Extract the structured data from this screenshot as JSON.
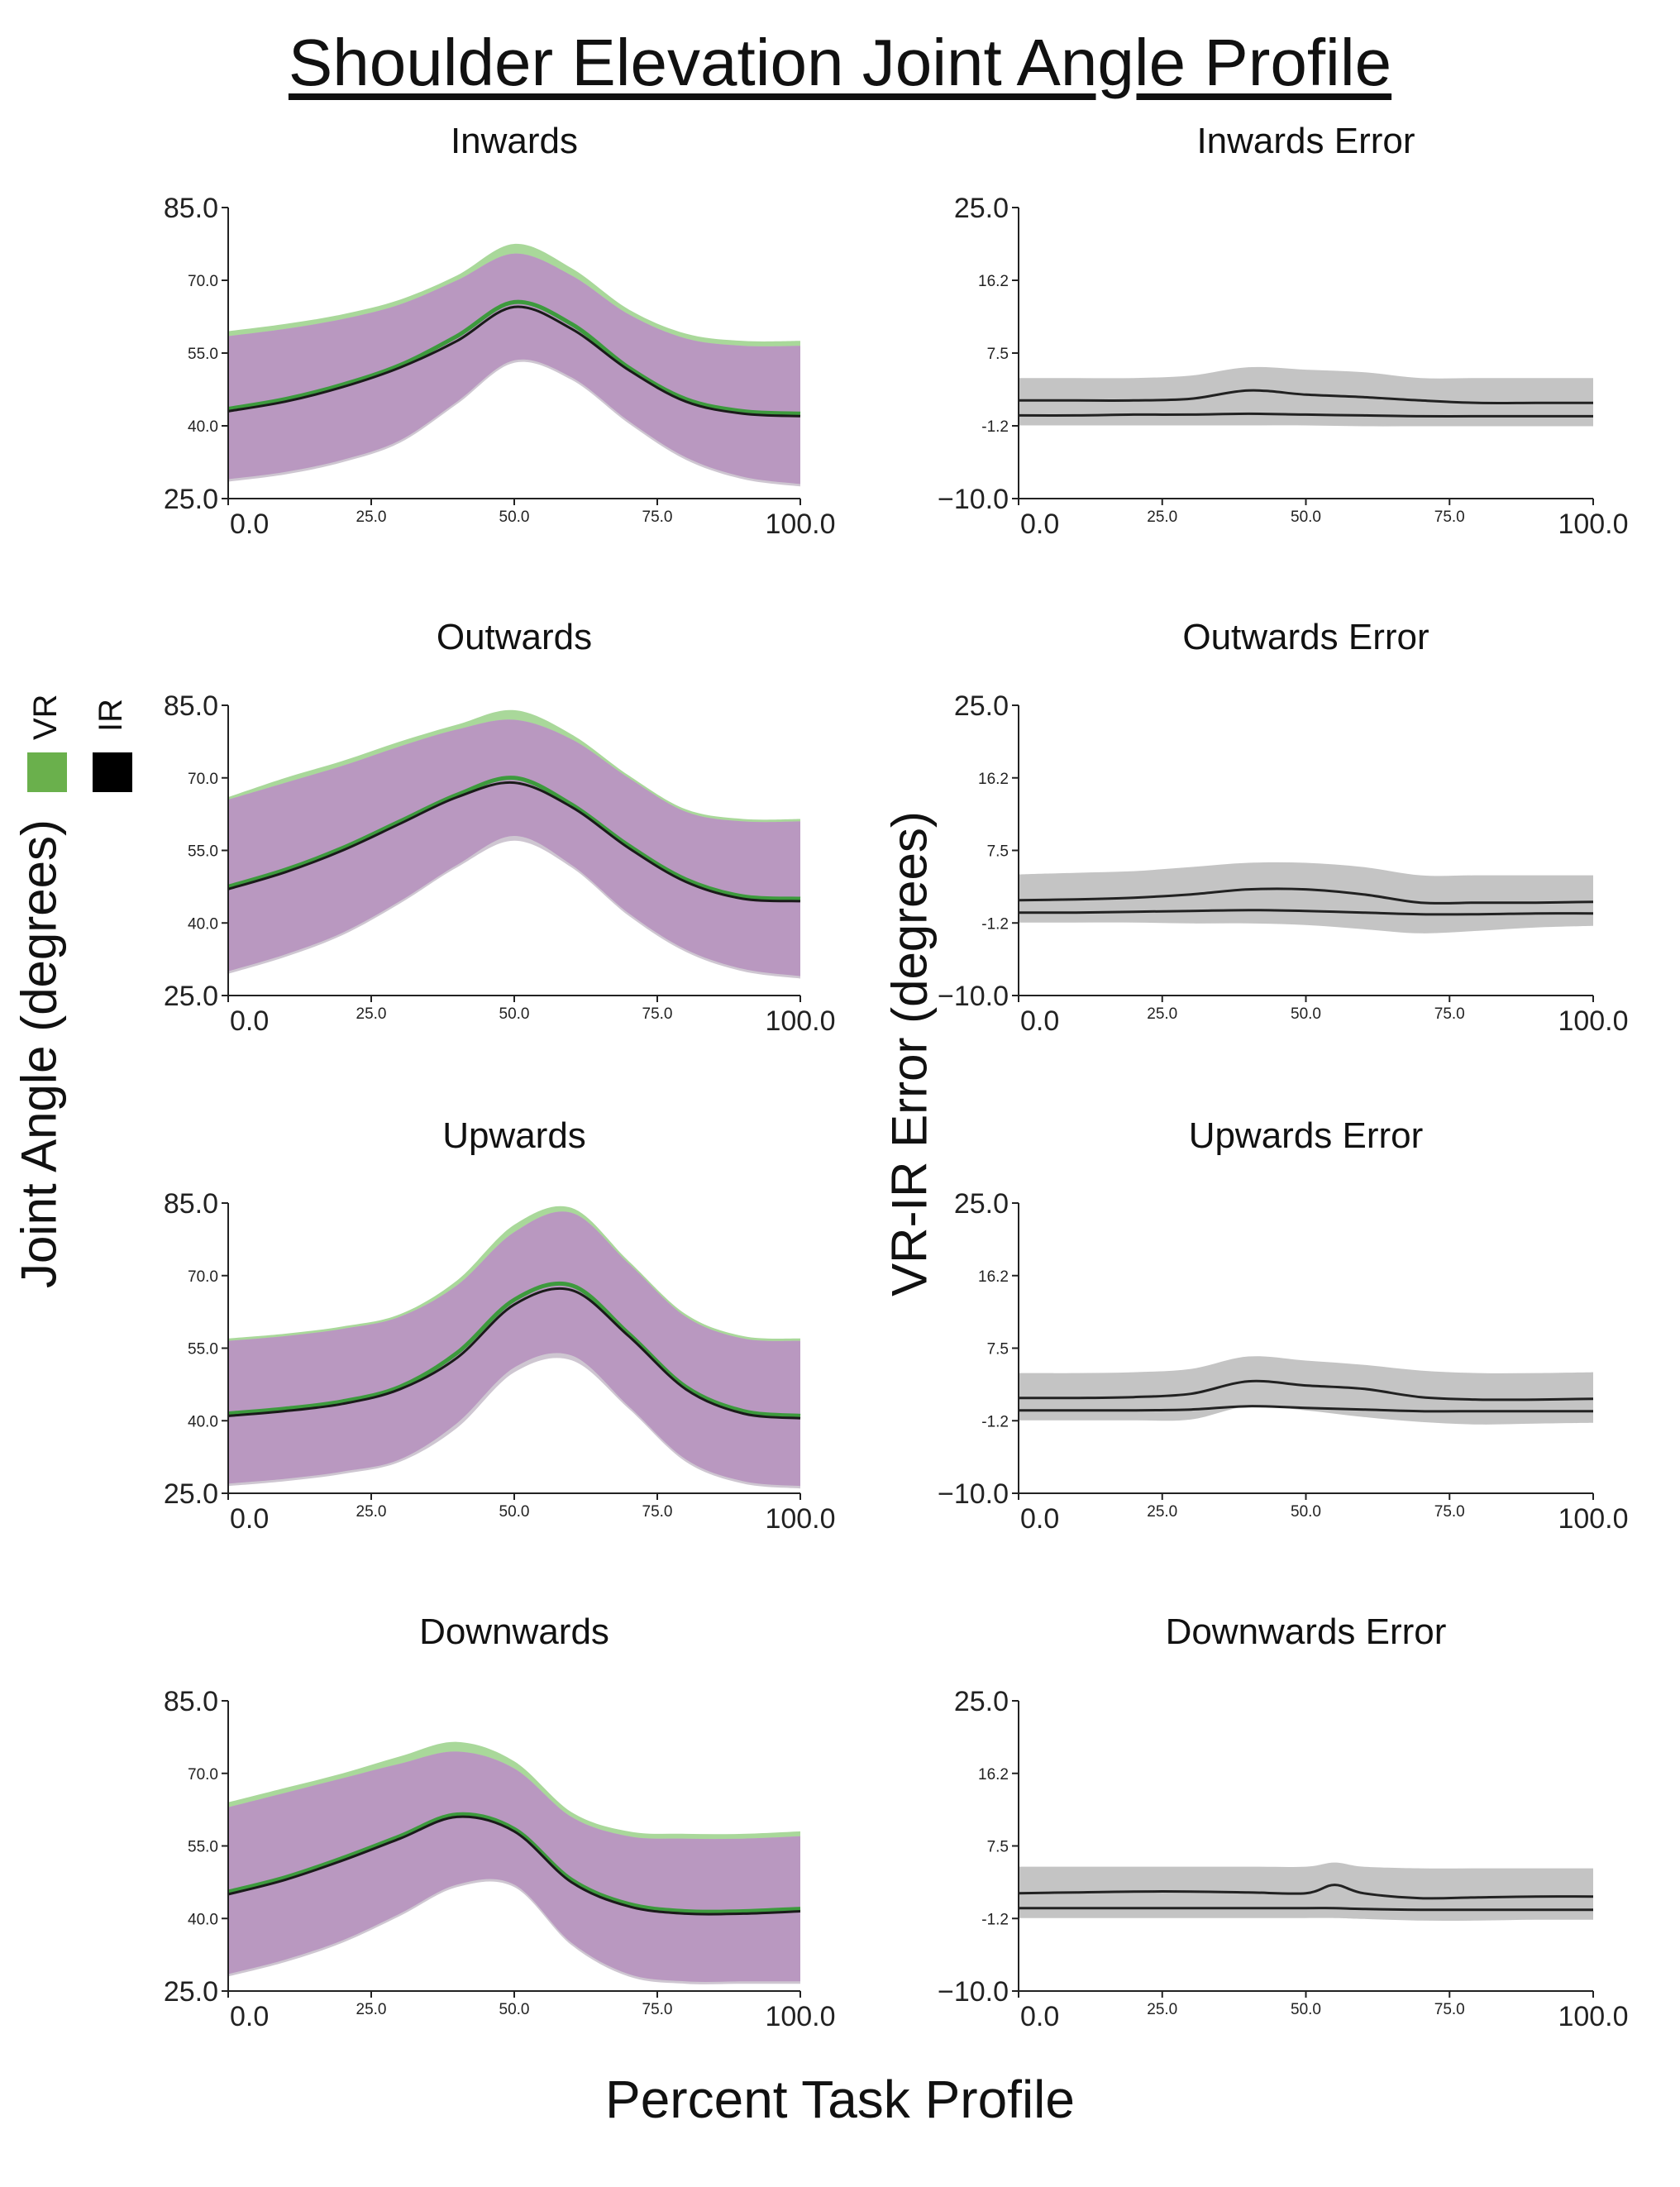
{
  "title": "Shoulder Elevation Joint Angle Profile",
  "xlabel": "Percent Task Profile",
  "ylabel_left": "Joint Angle (degrees)",
  "ylabel_right": "VR-IR Error (degrees)",
  "legend": [
    {
      "label": "VR",
      "color": "#6ab04c"
    },
    {
      "label": "IR",
      "color": "#000000"
    }
  ],
  "colors": {
    "vr_band": "#a9d89a",
    "ir_band": "#b998c0",
    "error_band": "#c4c4c4",
    "overlap_band": "#c9c0cc"
  },
  "chart_data": [
    {
      "type": "area",
      "title": "Inwards",
      "xlim": [
        0,
        100
      ],
      "ylim": [
        25,
        85
      ],
      "xticks": [
        "0.0",
        "25.0",
        "50.0",
        "75.0",
        "100.0"
      ],
      "yticks": [
        "25.0",
        "40.0",
        "55.0",
        "70.0",
        "85.0"
      ],
      "x": [
        0,
        10,
        20,
        30,
        40,
        50,
        60,
        70,
        80,
        90,
        100
      ],
      "series": [
        {
          "name": "VR",
          "mean": [
            43.5,
            45.5,
            48.5,
            52.5,
            58.5,
            65.5,
            61,
            52,
            45.5,
            43,
            42.5
          ],
          "upper": [
            59.5,
            61,
            63,
            66,
            71,
            77.5,
            72.5,
            64,
            59,
            57.5,
            57.5
          ],
          "lower": [
            29,
            30.5,
            33,
            37,
            45,
            53.5,
            50,
            41,
            33.5,
            29.5,
            28
          ]
        },
        {
          "name": "IR",
          "mean": [
            43,
            45,
            48,
            52,
            57.5,
            64.5,
            60,
            51.5,
            45,
            42.5,
            42
          ],
          "upper": [
            58.5,
            60,
            62,
            65,
            70,
            75.5,
            71,
            63,
            58,
            56.5,
            56.5
          ],
          "lower": [
            28.5,
            30,
            32.5,
            36.5,
            44.5,
            53,
            49.5,
            40.5,
            33,
            29,
            27.5
          ]
        }
      ]
    },
    {
      "type": "area",
      "title": "Inwards Error",
      "xlim": [
        0,
        100
      ],
      "ylim": [
        -10,
        25
      ],
      "xticks": [
        "0.0",
        "25.0",
        "50.0",
        "75.0",
        "100.0"
      ],
      "yticks": [
        "−10.0",
        "-1.2",
        "7.5",
        "16.2",
        "25.0"
      ],
      "x": [
        0,
        10,
        20,
        30,
        40,
        50,
        60,
        70,
        80,
        90,
        100
      ],
      "series": [
        {
          "name": "VR-IR",
          "upper": [
            4.5,
            4.5,
            4.5,
            4.8,
            5.8,
            5.5,
            5.2,
            4.5,
            4.5,
            4.5,
            4.5
          ],
          "upper_line": [
            1.8,
            1.8,
            1.8,
            2,
            3,
            2.5,
            2.2,
            1.8,
            1.5,
            1.5,
            1.5
          ],
          "lower_line": [
            0,
            0,
            0.1,
            0.1,
            0.2,
            0.1,
            0,
            -0.1,
            -0.1,
            -0.1,
            -0.1
          ],
          "lower": [
            -1.2,
            -1.2,
            -1.2,
            -1.2,
            -1.2,
            -1.2,
            -1.3,
            -1.3,
            -1.3,
            -1.3,
            -1.3
          ]
        }
      ]
    },
    {
      "type": "area",
      "title": "Outwards",
      "xlim": [
        0,
        100
      ],
      "ylim": [
        25,
        85
      ],
      "xticks": [
        "0.0",
        "25.0",
        "50.0",
        "75.0",
        "100.0"
      ],
      "yticks": [
        "25.0",
        "40.0",
        "55.0",
        "70.0",
        "85.0"
      ],
      "x": [
        0,
        10,
        20,
        30,
        40,
        50,
        60,
        70,
        80,
        90,
        100
      ],
      "series": [
        {
          "name": "VR",
          "mean": [
            47.5,
            51,
            55.5,
            61,
            66.5,
            70,
            64.5,
            56,
            49,
            45.5,
            45
          ],
          "upper": [
            66,
            70,
            73.5,
            77.5,
            81,
            84,
            79,
            70.5,
            63.5,
            61.5,
            61.5
          ],
          "lower": [
            30,
            33.5,
            38,
            44.5,
            52,
            58,
            52,
            42,
            34.5,
            30.5,
            29
          ]
        },
        {
          "name": "IR",
          "mean": [
            47,
            50.5,
            55,
            60.5,
            66,
            69,
            64,
            55.5,
            48.5,
            45,
            44.5
          ],
          "upper": [
            65.5,
            69,
            72.5,
            76.5,
            80,
            82,
            78,
            70,
            63,
            61,
            61
          ],
          "lower": [
            29.5,
            33,
            37.5,
            44,
            51.5,
            57,
            51.5,
            41.5,
            34,
            30,
            28.5
          ]
        }
      ]
    },
    {
      "type": "area",
      "title": "Outwards Error",
      "xlim": [
        0,
        100
      ],
      "ylim": [
        -10,
        25
      ],
      "xticks": [
        "0.0",
        "25.0",
        "50.0",
        "75.0",
        "100.0"
      ],
      "yticks": [
        "−10.0",
        "-1.2",
        "7.5",
        "16.2",
        "25.0"
      ],
      "x": [
        0,
        10,
        20,
        30,
        40,
        50,
        60,
        70,
        80,
        90,
        100
      ],
      "series": [
        {
          "name": "VR-IR",
          "upper": [
            4.6,
            4.8,
            5,
            5.5,
            6,
            6,
            5.5,
            4.5,
            4.5,
            4.5,
            4.5
          ],
          "upper_line": [
            1.5,
            1.6,
            1.8,
            2.2,
            2.8,
            2.8,
            2.2,
            1.2,
            1.2,
            1.2,
            1.3
          ],
          "lower_line": [
            0,
            0,
            0.1,
            0.2,
            0.3,
            0.2,
            0,
            -0.2,
            -0.2,
            -0.1,
            -0.1
          ],
          "lower": [
            -1.2,
            -1.2,
            -1.2,
            -1.3,
            -1.3,
            -1.5,
            -2,
            -2.5,
            -2.2,
            -1.8,
            -1.6
          ]
        }
      ]
    },
    {
      "type": "area",
      "title": "Upwards",
      "xlim": [
        0,
        100
      ],
      "ylim": [
        25,
        85
      ],
      "xticks": [
        "0.0",
        "25.0",
        "50.0",
        "75.0",
        "100.0"
      ],
      "yticks": [
        "25.0",
        "40.0",
        "55.0",
        "70.0",
        "85.0"
      ],
      "x": [
        0,
        10,
        20,
        30,
        40,
        50,
        60,
        70,
        80,
        90,
        100
      ],
      "series": [
        {
          "name": "VR",
          "mean": [
            41.5,
            42.5,
            44,
            47,
            54,
            65,
            68,
            58,
            47,
            42,
            41
          ],
          "upper": [
            57,
            58,
            59.5,
            62,
            69,
            80.5,
            84,
            73,
            62,
            57.5,
            57
          ],
          "lower": [
            27,
            28,
            29.5,
            32,
            39.5,
            51,
            53.5,
            43,
            32,
            27.5,
            26.5
          ]
        },
        {
          "name": "IR",
          "mean": [
            41,
            42,
            43.5,
            46.5,
            53,
            64,
            67,
            57.5,
            46.5,
            41.5,
            40.5
          ],
          "upper": [
            56.5,
            57.5,
            59,
            61.5,
            68,
            79,
            83,
            72.5,
            61.5,
            57,
            56.5
          ],
          "lower": [
            26.5,
            27.5,
            29,
            31.5,
            38.5,
            50,
            52.5,
            42.5,
            31.5,
            27,
            26
          ]
        }
      ]
    },
    {
      "type": "area",
      "title": "Upwards Error",
      "xlim": [
        0,
        100
      ],
      "ylim": [
        -10,
        25
      ],
      "xticks": [
        "0.0",
        "25.0",
        "50.0",
        "75.0",
        "100.0"
      ],
      "yticks": [
        "−10.0",
        "-1.2",
        "7.5",
        "16.2",
        "25.0"
      ],
      "x": [
        0,
        10,
        20,
        30,
        40,
        50,
        60,
        70,
        80,
        90,
        100
      ],
      "series": [
        {
          "name": "VR-IR",
          "upper": [
            4.5,
            4.5,
            4.6,
            5,
            6.5,
            6,
            5.5,
            4.8,
            4.5,
            4.5,
            4.6
          ],
          "upper_line": [
            1.5,
            1.5,
            1.6,
            2,
            3.5,
            3,
            2.6,
            1.6,
            1.3,
            1.3,
            1.4
          ],
          "lower_line": [
            0,
            0,
            0,
            0.1,
            0.5,
            0.3,
            0.1,
            -0.1,
            -0.1,
            -0.1,
            -0.1
          ],
          "lower": [
            -1.2,
            -1.2,
            -1.2,
            -1.1,
            0.5,
            0,
            -0.8,
            -1.4,
            -1.7,
            -1.6,
            -1.5
          ]
        }
      ]
    },
    {
      "type": "area",
      "title": "Downwards",
      "xlim": [
        0,
        100
      ],
      "ylim": [
        25,
        85
      ],
      "xticks": [
        "0.0",
        "25.0",
        "50.0",
        "75.0",
        "100.0"
      ],
      "yticks": [
        "25.0",
        "40.0",
        "55.0",
        "70.0",
        "85.0"
      ],
      "x": [
        0,
        10,
        20,
        30,
        40,
        50,
        60,
        70,
        80,
        90,
        100
      ],
      "series": [
        {
          "name": "VR",
          "mean": [
            45.5,
            48.5,
            52.5,
            57,
            61.5,
            58.5,
            48,
            43,
            41.5,
            41.5,
            42
          ],
          "upper": [
            64,
            67,
            70,
            73.5,
            76.5,
            72.5,
            62,
            58,
            57.5,
            57.5,
            58
          ],
          "lower": [
            28.5,
            31.5,
            35.5,
            41,
            47,
            47,
            35,
            28.5,
            27,
            27,
            27
          ]
        },
        {
          "name": "IR",
          "mean": [
            45,
            48,
            52,
            56.5,
            61,
            58,
            47.5,
            42.5,
            41,
            41,
            41.5
          ],
          "upper": [
            63,
            66,
            69,
            72,
            74.5,
            71,
            61,
            57,
            56.5,
            56.5,
            57
          ],
          "lower": [
            28,
            31,
            35,
            40.5,
            46.5,
            46.5,
            34.5,
            28,
            26.5,
            26.5,
            26.5
          ]
        }
      ]
    },
    {
      "type": "area",
      "title": "Downwards Error",
      "xlim": [
        0,
        100
      ],
      "ylim": [
        -10,
        25
      ],
      "xticks": [
        "0.0",
        "25.0",
        "50.0",
        "75.0",
        "100.0"
      ],
      "yticks": [
        "−10.0",
        "-1.2",
        "7.5",
        "16.2",
        "25.0"
      ],
      "x": [
        0,
        10,
        20,
        30,
        40,
        50,
        55,
        60,
        70,
        80,
        90,
        100
      ],
      "series": [
        {
          "name": "VR-IR",
          "upper": [
            5,
            5,
            5,
            5,
            5,
            5,
            5.5,
            5,
            4.8,
            4.8,
            4.8,
            4.8
          ],
          "upper_line": [
            1.8,
            1.9,
            2,
            2,
            1.9,
            1.8,
            2.8,
            1.8,
            1.2,
            1.3,
            1.4,
            1.4
          ],
          "lower_line": [
            0,
            0,
            0,
            0,
            0,
            0,
            0,
            -0.1,
            -0.2,
            -0.2,
            -0.2,
            -0.2
          ],
          "lower": [
            -1.2,
            -1.2,
            -1.2,
            -1.2,
            -1.2,
            -1.2,
            -1.2,
            -1.3,
            -1.5,
            -1.5,
            -1.4,
            -1.4
          ]
        }
      ]
    }
  ]
}
